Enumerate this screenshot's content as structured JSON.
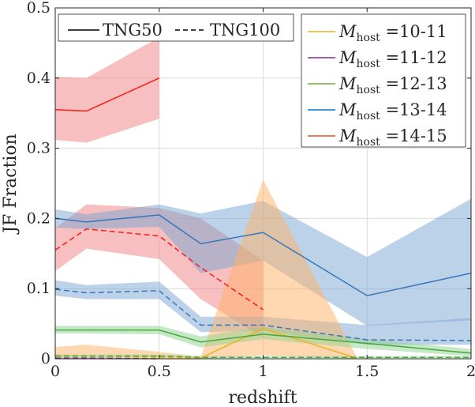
{
  "chart_data": {
    "type": "line",
    "title": "",
    "xlabel": "redshift",
    "ylabel": "JF Fraction",
    "xlim": [
      0,
      2
    ],
    "ylim": [
      0,
      0.5
    ],
    "grid": true,
    "x_ticks": [
      0,
      0.5,
      1,
      1.5,
      2
    ],
    "x_tick_labels": [
      "0",
      "0.5",
      "1",
      "1.5",
      "2"
    ],
    "y_ticks": [
      0,
      0.1,
      0.2,
      0.3,
      0.4,
      0.5
    ],
    "y_tick_labels": [
      "0",
      "0.1",
      "0.2",
      "0.3",
      "0.4",
      "0.5"
    ],
    "style_legend": {
      "placement": "top-left",
      "entries": [
        {
          "label": "TNG50",
          "style": "solid"
        },
        {
          "label": "TNG100",
          "style": "dashed"
        }
      ]
    },
    "mass_legend": {
      "placement": "top-right",
      "prefix": "M",
      "subscript": "host",
      "entries": [
        {
          "label": "=10-11",
          "color": "#EDB120"
        },
        {
          "label": "=11-12",
          "color": "#7E2F8E"
        },
        {
          "label": "=12-13",
          "color": "#77AC30"
        },
        {
          "label": "=13-14",
          "color": "#0072BD"
        },
        {
          "label": "=14-15",
          "color": "#D95319"
        }
      ]
    },
    "series": [
      {
        "name": "TNG50 Mhost=14-15",
        "simulation": "TNG50",
        "mass_bin": "14-15",
        "color": "#ff1a1a",
        "dash": "solid",
        "x": [
          0,
          0.15,
          0.5
        ],
        "y": [
          0.355,
          0.353,
          0.4
        ],
        "band_lo": [
          0.312,
          0.308,
          0.342
        ],
        "band_hi": [
          0.402,
          0.4,
          0.458
        ],
        "band_color": "#f08080"
      },
      {
        "name": "TNG100 Mhost=14-15",
        "simulation": "TNG100",
        "mass_bin": "14-15",
        "color": "#ff1a1a",
        "dash": "dashed",
        "x": [
          0,
          0.15,
          0.5,
          0.7,
          1
        ],
        "y": [
          0.155,
          0.185,
          0.175,
          0.13,
          0.07
        ],
        "band_lo": [
          0.125,
          0.157,
          0.142,
          0.085,
          0.03
        ],
        "band_hi": [
          0.186,
          0.22,
          0.215,
          0.2,
          0.14
        ],
        "band_color": "#f08080"
      },
      {
        "name": "TNG50 Mhost=13-14",
        "simulation": "TNG50",
        "mass_bin": "13-14",
        "color": "#3a75b8",
        "dash": "solid",
        "x": [
          0,
          0.15,
          0.5,
          0.7,
          1,
          1.5,
          2
        ],
        "y": [
          0.2,
          0.195,
          0.205,
          0.164,
          0.18,
          0.09,
          0.122
        ],
        "band_lo": [
          0.187,
          0.185,
          0.188,
          0.122,
          0.14,
          0.047,
          0.055
        ],
        "band_hi": [
          0.213,
          0.206,
          0.22,
          0.207,
          0.225,
          0.145,
          0.228
        ],
        "band_color": "#7aa6d4"
      },
      {
        "name": "TNG100 Mhost=13-14",
        "simulation": "TNG100",
        "mass_bin": "13-14",
        "color": "#3a75b8",
        "dash": "dashed",
        "x": [
          0,
          0.15,
          0.5,
          0.7,
          1,
          1.5,
          2
        ],
        "y": [
          0.099,
          0.094,
          0.097,
          0.048,
          0.048,
          0.027,
          0.026
        ],
        "band_lo": [
          0.09,
          0.085,
          0.085,
          0.038,
          0.04,
          0.02,
          0.02
        ],
        "band_hi": [
          0.112,
          0.105,
          0.11,
          0.06,
          0.06,
          0.048,
          0.058
        ],
        "band_color": "#7aa6d4"
      },
      {
        "name": "TNG50 Mhost=10-11",
        "simulation": "TNG50",
        "mass_bin": "10-11",
        "color": "#EDB120",
        "dash": "solid",
        "x": [
          0.7,
          1,
          1.45
        ],
        "y": [
          0.001,
          0.043,
          0.001
        ],
        "band_lo": [
          0,
          0.005,
          0
        ],
        "band_hi": [
          0.003,
          0.255,
          0.003
        ],
        "band_color": "#ffb266"
      },
      {
        "name": "TNG100 Mhost=10-11",
        "simulation": "TNG100",
        "mass_bin": "10-11",
        "color": "#EDB120",
        "dash": "dashed",
        "x": [
          0,
          0.15,
          0.5,
          0.7
        ],
        "y": [
          0.005,
          0.004,
          0.002,
          0.001
        ],
        "band_lo": [
          0,
          0,
          0,
          0
        ],
        "band_hi": [
          0.017,
          0.02,
          0.01,
          0.003
        ],
        "band_color": "#ffb266"
      },
      {
        "name": "TNG50 Mhost=12-13",
        "simulation": "TNG50",
        "mass_bin": "12-13",
        "color": "#44a83a",
        "dash": "solid",
        "x": [
          0,
          0.15,
          0.5,
          0.7,
          1,
          1.5,
          2
        ],
        "y": [
          0.041,
          0.041,
          0.041,
          0.024,
          0.035,
          0.022,
          0.008
        ],
        "band_lo": [
          0.036,
          0.036,
          0.035,
          0.016,
          0.028,
          0.014,
          0.004
        ],
        "band_hi": [
          0.047,
          0.047,
          0.047,
          0.032,
          0.045,
          0.028,
          0.014
        ],
        "band_color": "#8fd18f"
      },
      {
        "name": "TNG100 Mhost=12-13",
        "simulation": "TNG100",
        "mass_bin": "12-13",
        "color": "#44a83a",
        "dash": "dashed",
        "x": [
          0,
          0.15,
          0.5,
          0.7,
          1,
          1.5,
          2
        ],
        "y": [
          0.004,
          0.004,
          0.004,
          0.002,
          0.002,
          0.002,
          0.002
        ],
        "band_lo": [
          0.002,
          0.002,
          0.002,
          0.001,
          0.001,
          0.001,
          0.001
        ],
        "band_hi": [
          0.006,
          0.006,
          0.006,
          0.004,
          0.004,
          0.004,
          0.004
        ],
        "band_color": "#8fd18f"
      },
      {
        "name": "TNG100 Mhost=11-12",
        "simulation": "TNG100",
        "mass_bin": "11-12",
        "color": "#7E2F8E",
        "dash": "dashed",
        "x": [
          0,
          0.15,
          0.5
        ],
        "y": [
          0.001,
          0.001,
          0.0
        ],
        "band_lo": [
          0,
          0,
          0
        ],
        "band_hi": [
          0.002,
          0.002,
          0.001
        ],
        "band_color": "#c79bd1"
      }
    ]
  }
}
